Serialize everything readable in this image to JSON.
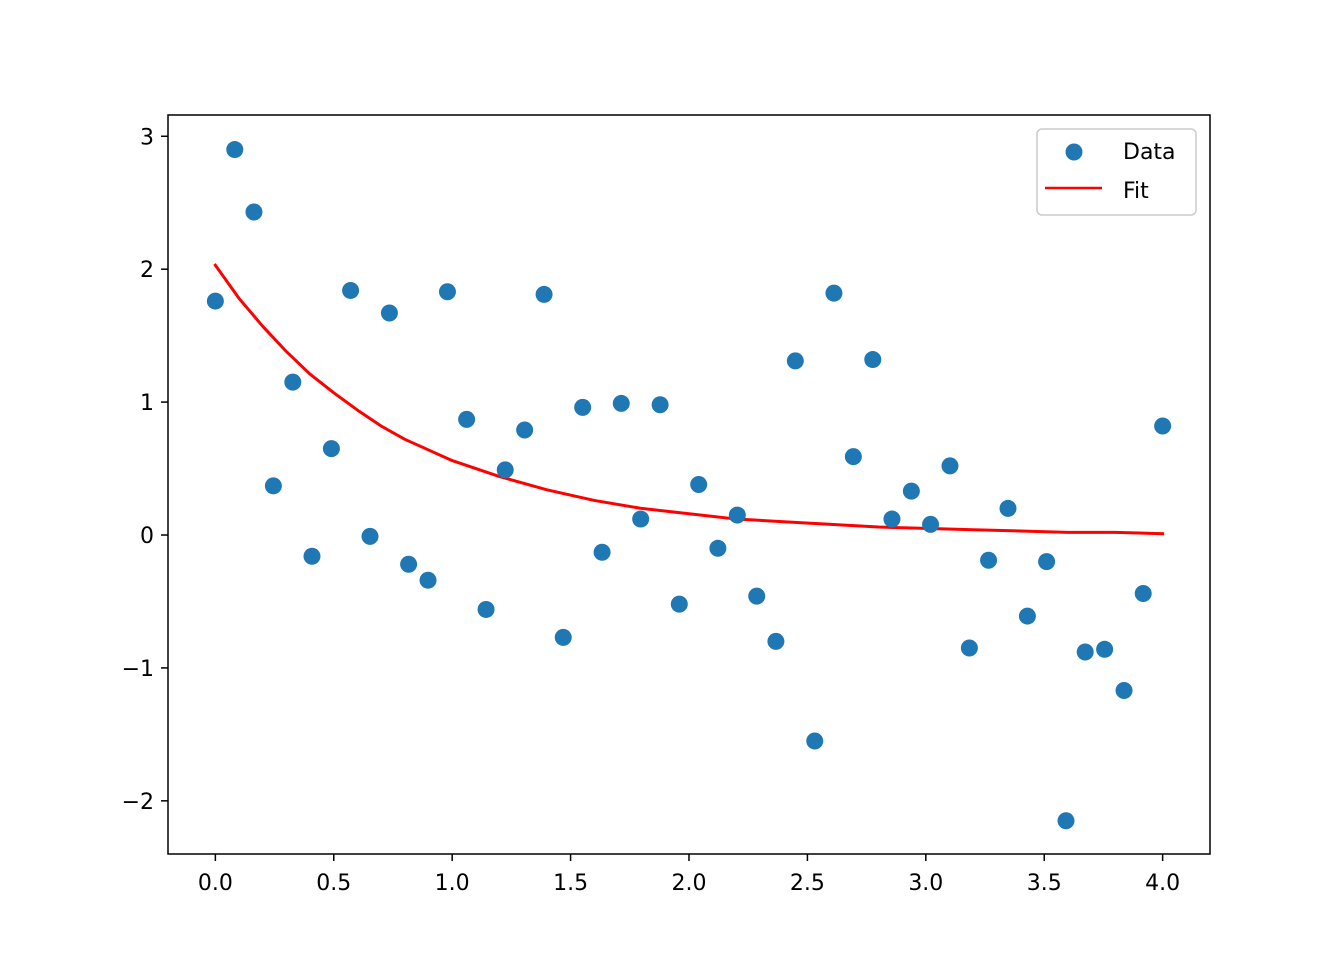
{
  "chart_data": {
    "type": "scatter",
    "title": "",
    "xlabel": "",
    "ylabel": "",
    "xlim": [
      -0.2,
      4.2
    ],
    "ylim": [
      -2.4,
      3.16
    ],
    "xticks": [
      0.0,
      0.5,
      1.0,
      1.5,
      2.0,
      2.5,
      3.0,
      3.5,
      4.0
    ],
    "xtick_labels": [
      "0.0",
      "0.5",
      "1.0",
      "1.5",
      "2.0",
      "2.5",
      "3.0",
      "3.5",
      "4.0"
    ],
    "yticks": [
      -2,
      -1,
      0,
      1,
      2,
      3
    ],
    "ytick_labels": [
      "−2",
      "−1",
      "0",
      "1",
      "2",
      "3"
    ],
    "grid": false,
    "legend": {
      "position": "top-right",
      "entries": [
        "Data",
        "Fit"
      ]
    },
    "series": [
      {
        "name": "Data",
        "type": "scatter",
        "color": "#1f77b4",
        "x": [
          0.0,
          0.082,
          0.163,
          0.245,
          0.327,
          0.408,
          0.49,
          0.571,
          0.653,
          0.735,
          0.816,
          0.898,
          0.98,
          1.061,
          1.143,
          1.224,
          1.306,
          1.388,
          1.469,
          1.551,
          1.633,
          1.714,
          1.796,
          1.878,
          1.959,
          2.041,
          2.122,
          2.204,
          2.286,
          2.367,
          2.449,
          2.531,
          2.612,
          2.694,
          2.776,
          2.857,
          2.939,
          3.02,
          3.102,
          3.184,
          3.265,
          3.347,
          3.429,
          3.51,
          3.592,
          3.673,
          3.755,
          3.837,
          3.918,
          4.0
        ],
        "y": [
          1.76,
          2.9,
          2.43,
          0.37,
          1.15,
          -0.16,
          0.65,
          1.84,
          -0.01,
          1.67,
          -0.22,
          -0.34,
          1.83,
          0.87,
          -0.56,
          0.49,
          0.79,
          1.81,
          -0.77,
          0.96,
          -0.13,
          0.99,
          0.12,
          0.98,
          -0.52,
          0.38,
          -0.1,
          0.15,
          -0.46,
          -0.8,
          1.31,
          -1.55,
          1.82,
          0.59,
          1.32,
          0.12,
          0.33,
          0.08,
          0.52,
          -0.85,
          -0.19,
          0.2,
          -0.61,
          -0.2,
          -2.15,
          -0.88,
          -0.86,
          -1.17,
          -0.44,
          0.82
        ]
      },
      {
        "name": "Fit",
        "type": "line",
        "color": "#ff0000",
        "x": [
          0.0,
          0.1,
          0.2,
          0.3,
          0.4,
          0.5,
          0.6,
          0.7,
          0.8,
          0.9,
          1.0,
          1.2,
          1.4,
          1.6,
          1.8,
          2.0,
          2.2,
          2.4,
          2.6,
          2.8,
          3.0,
          3.2,
          3.4,
          3.6,
          3.8,
          4.0
        ],
        "y": [
          2.03,
          1.78,
          1.57,
          1.38,
          1.21,
          1.07,
          0.94,
          0.82,
          0.72,
          0.64,
          0.56,
          0.44,
          0.34,
          0.26,
          0.2,
          0.16,
          0.12,
          0.1,
          0.08,
          0.06,
          0.05,
          0.04,
          0.03,
          0.02,
          0.02,
          0.01
        ]
      }
    ]
  }
}
